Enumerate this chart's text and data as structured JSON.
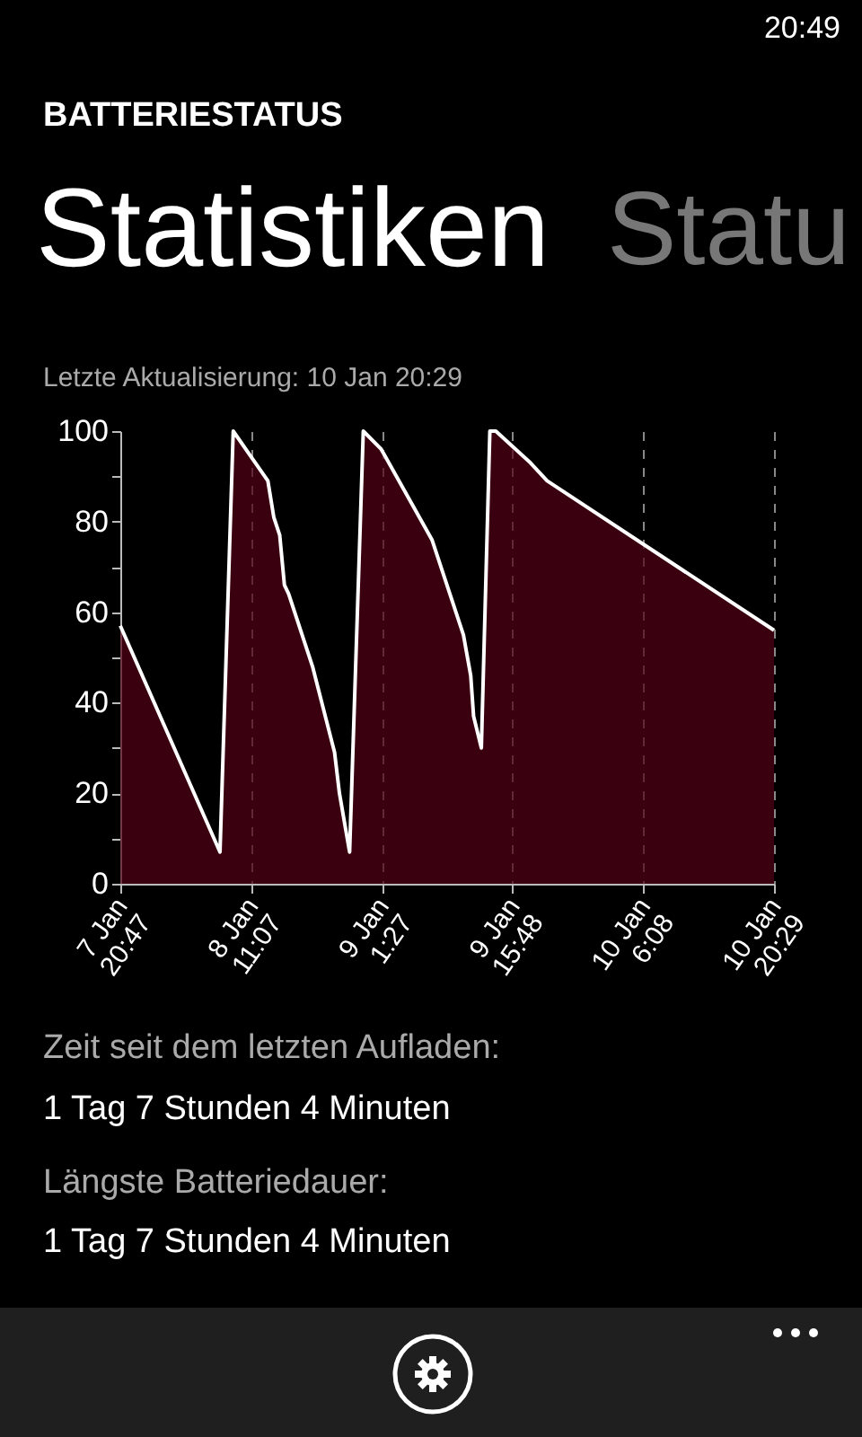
{
  "chart_data": {
    "type": "area",
    "title": "BATTERIESTATUS",
    "subtitle": "Statistiken",
    "annotations": [
      "20:49",
      "Statu",
      "Letzte Aktualisierung: 10 Jan 20:29",
      "Zeit seit dem letzten Aufladen:",
      "1 Tag 7 Stunden 4 Minuten",
      "Längste Batteriedauer:",
      "1 Tag 7 Stunden 4 Minuten"
    ],
    "x": [
      "--01-07T20:47",
      "--01-08T07:43",
      "--01-08T09:10",
      "--01-08T12:58",
      "--01-08T13:37",
      "--01-08T14:16",
      "--01-08T14:47",
      "--01-08T15:15",
      "--01-08T17:52",
      "--01-08T20:17",
      "--01-08T20:49",
      "--01-08T21:56",
      "--01-08T23:26",
      "--01-09T01:24",
      "--01-09T06:58",
      "--01-09T07:57",
      "--01-09T10:25",
      "--01-09T11:13",
      "--01-09T11:32",
      "--01-09T12:23",
      "--01-09T13:19",
      "--01-09T13:58",
      "--01-09T17:46",
      "--01-09T19:36",
      "--01-10T20:29"
    ],
    "series": [
      {
        "color": "#520016",
        "values": [
          57,
          7,
          100,
          89,
          81,
          77,
          66,
          64,
          48,
          29,
          20,
          7,
          100,
          96,
          76,
          70,
          55,
          46,
          37,
          30,
          100,
          100,
          93,
          89,
          56
        ]
      }
    ],
    "xlim": [
      "--01-07T20:47",
      "--01-10T20:29"
    ],
    "xticks": [
      {
        "value": "--01-07T20:47",
        "label": "7 Jan\n20:47"
      },
      {
        "value": "--01-08T11:07",
        "label": "8 Jan\n11:07"
      },
      {
        "value": "--01-09T01:27",
        "label": "9 Jan\n1:27"
      },
      {
        "value": "--01-09T15:48",
        "label": "9 Jan\n15:48"
      },
      {
        "value": "--01-10T06:08",
        "label": "10 Jan\n6:08"
      },
      {
        "value": "--01-10T20:29",
        "label": "10 Jan\n20:29"
      }
    ],
    "ylim": [
      0,
      100
    ],
    "yticks": [
      0,
      {
        "value": 10,
        "label": null
      },
      20,
      {
        "value": 30,
        "label": null
      },
      40,
      {
        "value": 50,
        "label": null
      },
      60,
      {
        "value": 70,
        "label": null
      },
      80,
      {
        "value": 90,
        "label": null
      },
      100
    ],
    "grid": "x"
  }
}
